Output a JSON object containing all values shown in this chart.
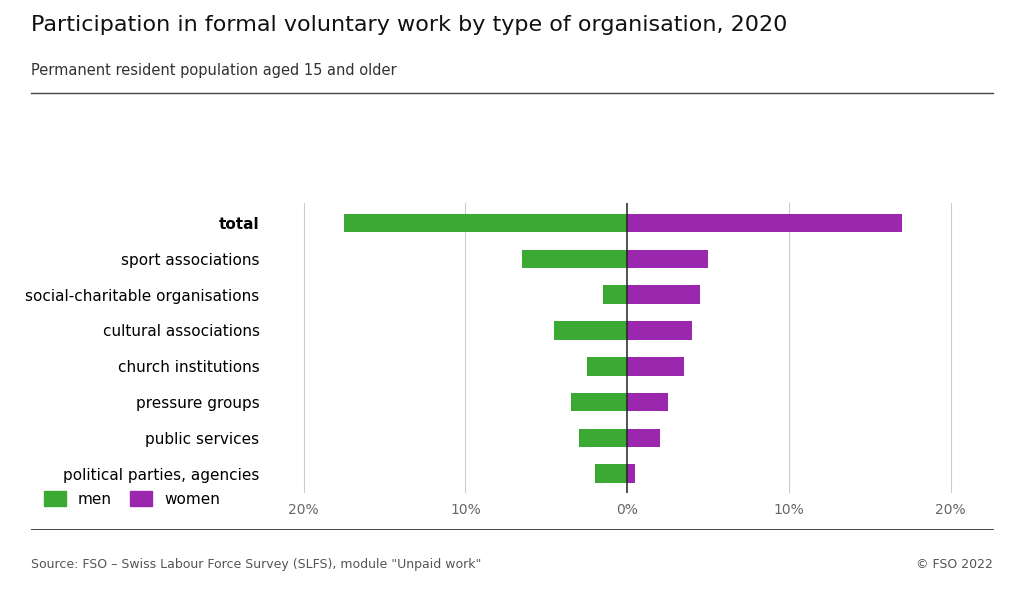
{
  "title": "Participation in formal voluntary work by type of organisation, 2020",
  "subtitle": "Permanent resident population aged 15 and older",
  "source": "Source: FSO – Swiss Labour Force Survey (SLFS), module \"Unpaid work\"",
  "copyright": "© FSO 2022",
  "categories": [
    "political parties, agencies",
    "public services",
    "pressure groups",
    "church institutions",
    "cultural associations",
    "social-charitable organisations",
    "sport associations",
    "total"
  ],
  "men_values": [
    -2.0,
    -3.0,
    -3.5,
    -2.5,
    -4.5,
    -1.5,
    -6.5,
    -17.5
  ],
  "women_values": [
    0.5,
    2.0,
    2.5,
    3.5,
    4.0,
    4.5,
    5.0,
    17.0
  ],
  "men_color": "#3aaa35",
  "women_color": "#9b27af",
  "xlim": [
    -22,
    22
  ],
  "xticks": [
    -20,
    -10,
    0,
    10,
    20
  ],
  "xticklabels": [
    "20%",
    "10%",
    "0%",
    "10%",
    "20%"
  ],
  "grid_color": "#cccccc",
  "background_color": "#ffffff",
  "zero_line_color": "#222222",
  "label_fontsize": 11,
  "tick_fontsize": 10,
  "title_fontsize": 16,
  "subtitle_fontsize": 10.5
}
